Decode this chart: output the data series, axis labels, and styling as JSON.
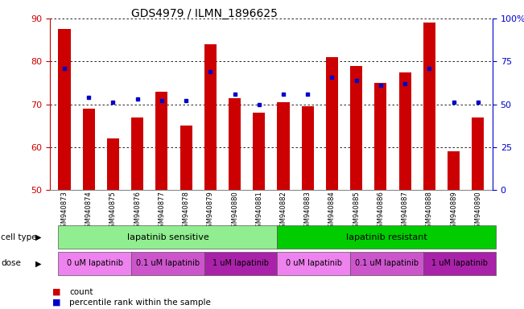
{
  "title": "GDS4979 / ILMN_1896625",
  "samples": [
    "GSM940873",
    "GSM940874",
    "GSM940875",
    "GSM940876",
    "GSM940877",
    "GSM940878",
    "GSM940879",
    "GSM940880",
    "GSM940881",
    "GSM940882",
    "GSM940883",
    "GSM940884",
    "GSM940885",
    "GSM940886",
    "GSM940887",
    "GSM940888",
    "GSM940889",
    "GSM940890"
  ],
  "counts": [
    87.5,
    69.0,
    62.0,
    67.0,
    73.0,
    65.0,
    84.0,
    71.5,
    68.0,
    70.5,
    69.5,
    81.0,
    79.0,
    75.0,
    77.5,
    89.0,
    59.0,
    67.0
  ],
  "percentiles": [
    71,
    54,
    51,
    53,
    52,
    52,
    69,
    56,
    50,
    56,
    56,
    66,
    64,
    61,
    62,
    71,
    51,
    51
  ],
  "ylim_left": [
    50,
    90
  ],
  "ylim_right": [
    0,
    100
  ],
  "yticks_left": [
    50,
    60,
    70,
    80,
    90
  ],
  "yticks_right": [
    0,
    25,
    50,
    75,
    100
  ],
  "bar_color": "#cc0000",
  "dot_color": "#0000cc",
  "bar_width": 0.5,
  "cell_type_groups": [
    {
      "label": "lapatinib sensitive",
      "start": 0,
      "end": 9,
      "color": "#90ee90"
    },
    {
      "label": "lapatinib resistant",
      "start": 9,
      "end": 18,
      "color": "#00cc00"
    }
  ],
  "dose_groups": [
    {
      "label": "0 uM lapatinib",
      "start": 0,
      "end": 3,
      "color": "#ee82ee"
    },
    {
      "label": "0.1 uM lapatinib",
      "start": 3,
      "end": 6,
      "color": "#cc55cc"
    },
    {
      "label": "1 uM lapatinib",
      "start": 6,
      "end": 9,
      "color": "#aa22aa"
    },
    {
      "label": "0 uM lapatinib",
      "start": 9,
      "end": 12,
      "color": "#ee82ee"
    },
    {
      "label": "0.1 uM lapatinib",
      "start": 12,
      "end": 15,
      "color": "#cc55cc"
    },
    {
      "label": "1 uM lapatinib",
      "start": 15,
      "end": 18,
      "color": "#aa22aa"
    }
  ],
  "legend_count_color": "#cc0000",
  "legend_dot_color": "#0000cc",
  "cell_type_label": "cell type",
  "dose_label": "dose",
  "legend_count_text": "count",
  "legend_percentile_text": "percentile rank within the sample",
  "background_color": "#ffffff",
  "tick_color_left": "#cc0000",
  "tick_color_right": "#0000cc",
  "plot_facecolor": "#ffffff"
}
